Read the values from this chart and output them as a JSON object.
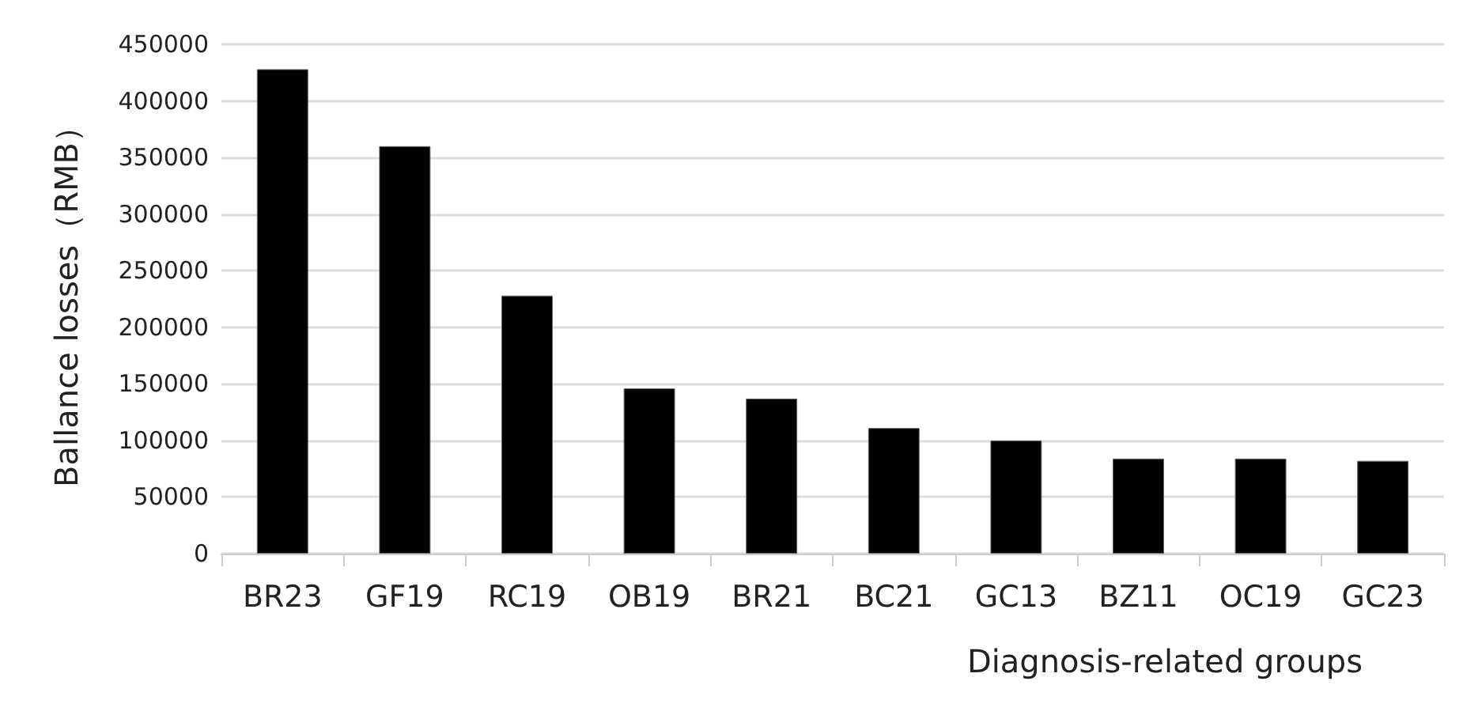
{
  "chart_data": {
    "type": "bar",
    "xlabel": "Diagnosis-related groups",
    "ylabel": "Ballance losses（RMB）",
    "categories": [
      "BR23",
      "GF19",
      "RC19",
      "OB19",
      "BR21",
      "BC21",
      "GC13",
      "BZ11",
      "OC19",
      "GC23"
    ],
    "values": [
      428000,
      360000,
      228000,
      146000,
      137000,
      111000,
      100000,
      84000,
      84000,
      82000
    ],
    "color": "#000000",
    "ylim": [
      0,
      450000
    ],
    "yticks": [
      0,
      50000,
      100000,
      150000,
      200000,
      250000,
      300000,
      350000,
      400000,
      450000
    ],
    "grid": "y"
  }
}
